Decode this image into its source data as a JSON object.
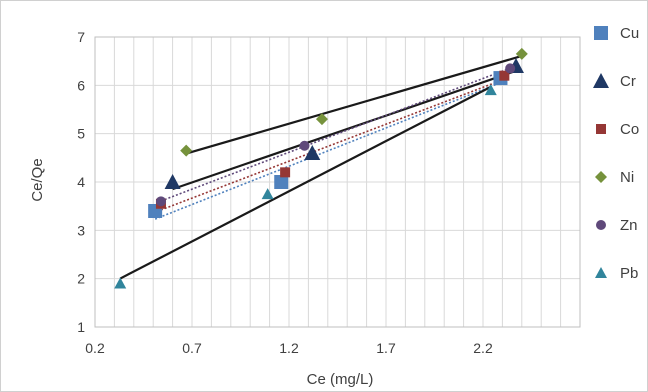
{
  "chart_data": {
    "type": "scatter",
    "title": "",
    "xlabel": "Ce (mg/L)",
    "ylabel": "Ce/Qe",
    "xlim": [
      0.2,
      2.7
    ],
    "ylim": [
      1,
      7
    ],
    "xticks": [
      0.2,
      0.7,
      1.2,
      1.7,
      2.2
    ],
    "xtick_labels": [
      "0.2",
      "0.7",
      "1.2",
      "1.7",
      "2.2"
    ],
    "yticks": [
      1,
      2,
      3,
      4,
      5,
      6,
      7
    ],
    "ytick_labels": [
      "1",
      "2",
      "3",
      "4",
      "5",
      "6",
      "7"
    ],
    "grid": "vertical gridlines at every 0.1 and horizontal gridlines at every 1",
    "legend_position": "right",
    "series": [
      {
        "name": "Cu",
        "color": "#4f81bd",
        "marker": "square",
        "trendline": "dotted",
        "x": [
          0.51,
          1.16,
          2.29
        ],
        "y": [
          3.4,
          4.0,
          6.15
        ]
      },
      {
        "name": "Cr",
        "color": "#1f3864",
        "marker": "triangle",
        "trendline": "solid",
        "x": [
          0.6,
          1.32,
          2.37
        ],
        "y": [
          4.0,
          4.6,
          6.4
        ]
      },
      {
        "name": "Co",
        "color": "#953735",
        "marker": "square-small",
        "trendline": "dotted",
        "x": [
          0.54,
          1.18,
          2.31
        ],
        "y": [
          3.55,
          4.2,
          6.2
        ]
      },
      {
        "name": "Ni",
        "color": "#76923c",
        "marker": "diamond",
        "trendline": "solid",
        "x": [
          0.67,
          1.37,
          2.4
        ],
        "y": [
          4.65,
          5.3,
          6.65
        ]
      },
      {
        "name": "Zn",
        "color": "#5f497a",
        "marker": "circle",
        "trendline": "dotted",
        "x": [
          0.54,
          1.28,
          2.34
        ],
        "y": [
          3.6,
          4.75,
          6.35
        ]
      },
      {
        "name": "Pb",
        "color": "#31859c",
        "marker": "triangle-small",
        "trendline": "solid",
        "x": [
          0.33,
          1.09,
          2.24
        ],
        "y": [
          1.9,
          3.75,
          5.9
        ]
      }
    ]
  }
}
